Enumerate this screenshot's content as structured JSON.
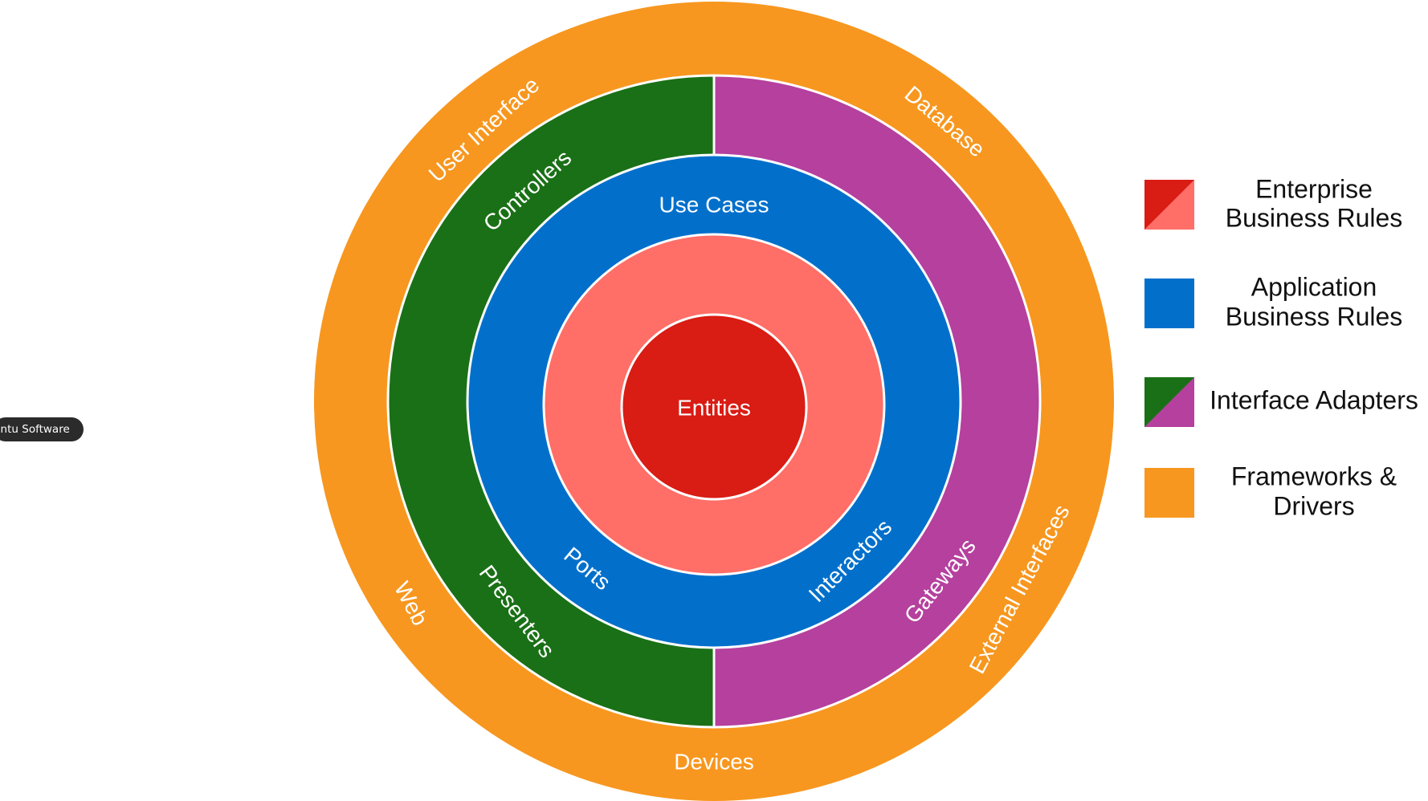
{
  "dock_tooltip": "untu Software",
  "colors": {
    "frameworks_drivers": "#F7971F",
    "interface_adapters_green": "#1A7016",
    "interface_adapters_purple": "#B5409E",
    "application_business_rules": "#0270CB",
    "enterprise_light": "#FF6E67",
    "enterprise_dark": "#D91C14"
  },
  "rings": {
    "outer": {
      "top": "User Interface",
      "top_right": "Database",
      "bottom_left": "Web",
      "bottom": "Devices",
      "bottom_right": "External Interfaces"
    },
    "adapters": {
      "top_left": "Controllers",
      "bottom_left": "Presenters",
      "bottom_right": "Gateways"
    },
    "use_cases": {
      "top": "Use Cases",
      "bottom_left": "Ports",
      "bottom_right": "Interactors"
    },
    "center": "Entities"
  },
  "legend": [
    {
      "line1": "Enterprise",
      "line2": "Business Rules",
      "swatch": "split",
      "color_a": "#D91C14",
      "color_b": "#FF6E67"
    },
    {
      "line1": "Application",
      "line2": "Business Rules",
      "swatch": "solid",
      "color_a": "#0270CB"
    },
    {
      "line1": "Interface Adapters",
      "line2": "",
      "swatch": "split",
      "color_a": "#1A7016",
      "color_b": "#B5409E"
    },
    {
      "line1": "Frameworks &",
      "line2": "Drivers",
      "swatch": "solid",
      "color_a": "#F7971F"
    }
  ]
}
